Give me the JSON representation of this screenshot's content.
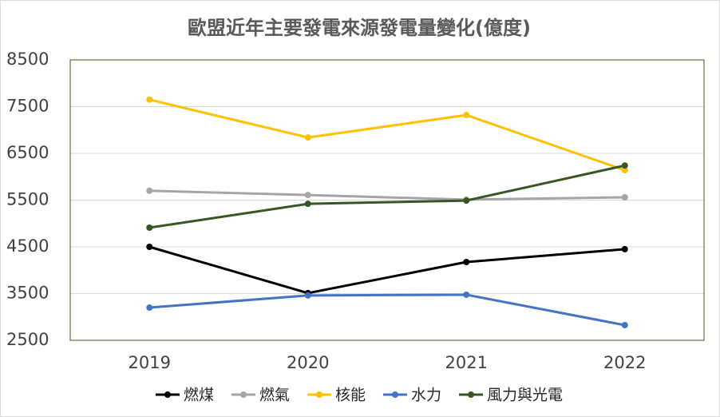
{
  "chart_data": {
    "type": "line",
    "title": "歐盟近年主要發電來源發電量變化(億度)",
    "categories": [
      "2019",
      "2020",
      "2021",
      "2022"
    ],
    "series": [
      {
        "name": "燃煤",
        "color": "#000000",
        "values": [
          4500,
          3510,
          4175,
          4450
        ]
      },
      {
        "name": "燃氣",
        "color": "#a5a5a5",
        "values": [
          5700,
          5610,
          5510,
          5560
        ]
      },
      {
        "name": "核能",
        "color": "#ffc000",
        "values": [
          7650,
          6840,
          7320,
          6140
        ]
      },
      {
        "name": "水力",
        "color": "#4472c4",
        "values": [
          3200,
          3460,
          3475,
          2825
        ]
      },
      {
        "name": "風力與光電",
        "color": "#375623",
        "values": [
          4910,
          5420,
          5490,
          6240
        ]
      }
    ],
    "ylim": [
      2500,
      8500
    ],
    "yticks": [
      2500,
      3500,
      4500,
      5500,
      6500,
      7500,
      8500
    ],
    "grid": true,
    "legend": "bottom"
  }
}
